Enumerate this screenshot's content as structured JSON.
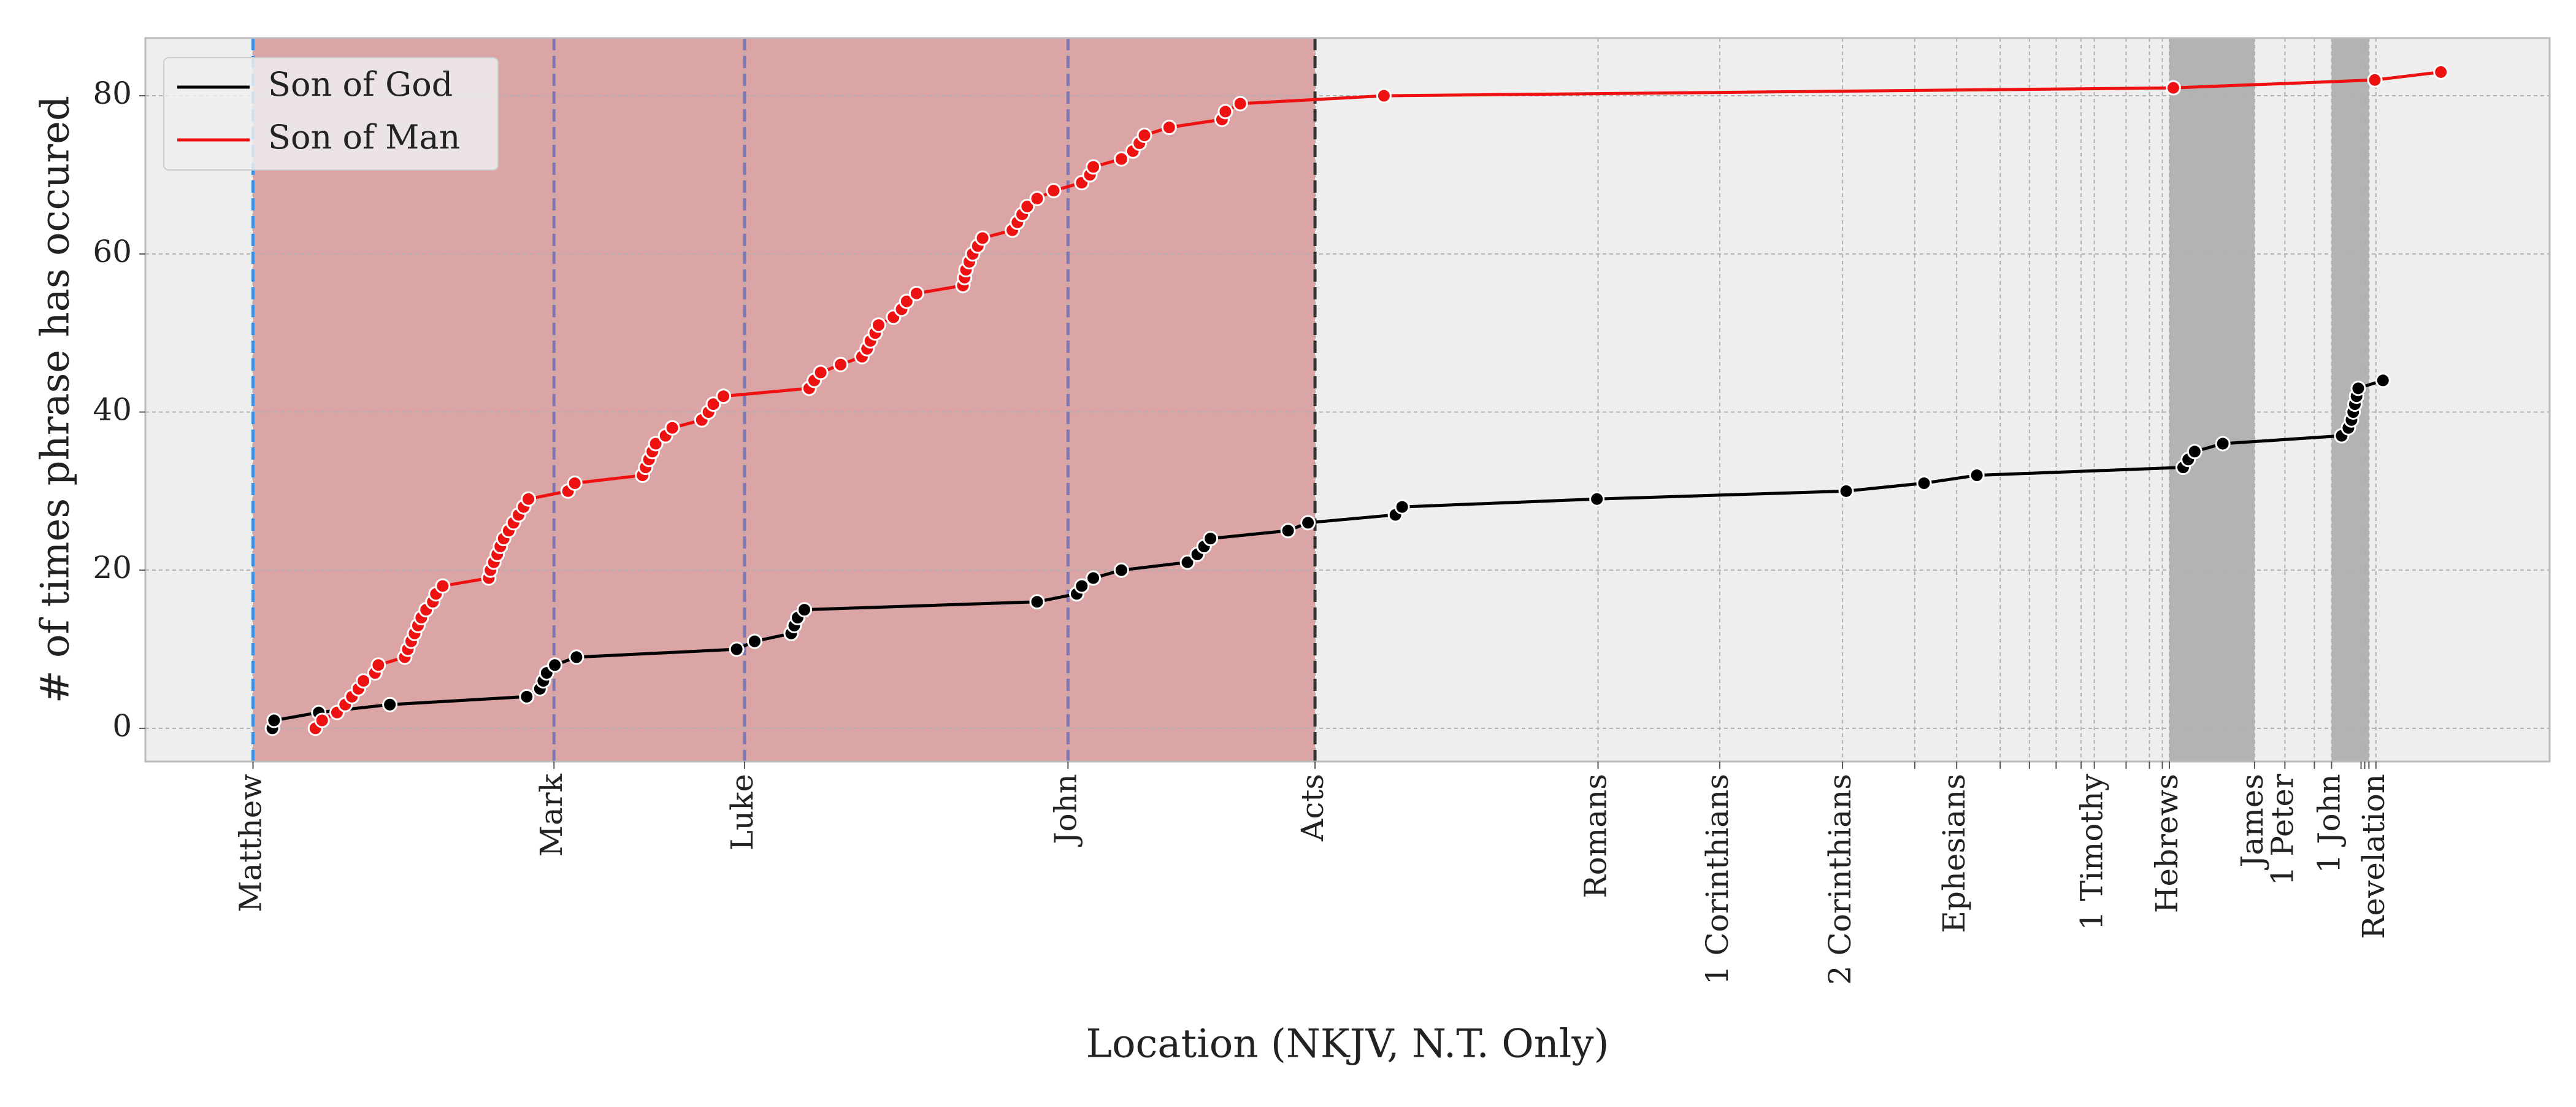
{
  "chart_data": {
    "type": "line",
    "xlabel": "Location (NKJV, N.T. Only)",
    "ylabel": "# of times phrase has occured",
    "xlim": [
      -382,
      8173
    ],
    "ylim": [
      -4.2,
      87.3
    ],
    "yticks": [
      0,
      20,
      40,
      60,
      80
    ],
    "xticks": [
      {
        "value": 1,
        "label": "Matthew"
      },
      {
        "value": 1072,
        "label": "Mark"
      },
      {
        "value": 1750,
        "label": "Luke"
      },
      {
        "value": 2901,
        "label": "John"
      },
      {
        "value": 3780,
        "label": "Acts"
      },
      {
        "value": 4787,
        "label": "Romans"
      },
      {
        "value": 5220,
        "label": "1 Corinthians"
      },
      {
        "value": 5657,
        "label": "2 Corinthians"
      },
      {
        "value": 5914,
        "label": null
      },
      {
        "value": 6063,
        "label": "Ephesians"
      },
      {
        "value": 6218,
        "label": null
      },
      {
        "value": 6322,
        "label": null
      },
      {
        "value": 6417,
        "label": null
      },
      {
        "value": 6506,
        "label": null
      },
      {
        "value": 6553,
        "label": "1 Timothy"
      },
      {
        "value": 6666,
        "label": null
      },
      {
        "value": 6749,
        "label": null
      },
      {
        "value": 6795,
        "label": null
      },
      {
        "value": 6820,
        "label": "Hebrews"
      },
      {
        "value": 7123,
        "label": "James"
      },
      {
        "value": 7231,
        "label": "1 Peter"
      },
      {
        "value": 7336,
        "label": null
      },
      {
        "value": 7397,
        "label": "1 John"
      },
      {
        "value": 7502,
        "label": null
      },
      {
        "value": 7515,
        "label": null
      },
      {
        "value": 7530,
        "label": null
      },
      {
        "value": 7555,
        "label": "Revelation"
      }
    ],
    "grid": true,
    "legend": "upper left",
    "spans": [
      {
        "x0": 1,
        "x1": 3780,
        "color": "#dba5a5"
      },
      {
        "x0": 6820,
        "x1": 7123,
        "color": "#b3b3b3"
      },
      {
        "x0": 7397,
        "x1": 7530,
        "color": "#b3b3b3"
      }
    ],
    "vlines": [
      {
        "x": 1,
        "color": "#3a8fe0"
      },
      {
        "x": 1072,
        "color": "#7f78b6"
      },
      {
        "x": 1750,
        "color": "#7f78b6"
      },
      {
        "x": 2901,
        "color": "#7f78b6"
      },
      {
        "x": 3780,
        "color": "#333333"
      }
    ],
    "series": [
      {
        "name": "Son of God",
        "color": "#000000",
        "x": [
          70,
          76,
          235,
          488,
          975,
          1022,
          1034,
          1046,
          1075,
          1152,
          1722,
          1786,
          1916,
          1927,
          1939,
          1963,
          2791,
          2932,
          2950,
          2991,
          3091,
          3326,
          3361,
          3385,
          3408,
          3684,
          3755,
          4066,
          4090,
          4783,
          5670,
          5947,
          6135,
          6869,
          6887,
          6910,
          7010,
          7433,
          7457,
          7468,
          7474,
          7480,
          7486,
          7492,
          7580
        ],
        "values": [
          0,
          1,
          2,
          3,
          4,
          5,
          6,
          7,
          8,
          9,
          10,
          11,
          12,
          13,
          14,
          15,
          16,
          17,
          18,
          19,
          20,
          21,
          22,
          23,
          24,
          25,
          26,
          27,
          28,
          29,
          30,
          31,
          32,
          33,
          34,
          35,
          36,
          37,
          38,
          39,
          40,
          41,
          42,
          43,
          44
        ]
      },
      {
        "name": "Son of Man",
        "color": "#ee1111",
        "x": [
          223,
          247,
          300,
          329,
          353,
          376,
          394,
          435,
          447,
          541,
          552,
          564,
          576,
          588,
          600,
          617,
          641,
          652,
          676,
          840,
          846,
          858,
          870,
          881,
          893,
          911,
          928,
          946,
          964,
          981,
          1122,
          1146,
          1387,
          1398,
          1410,
          1422,
          1434,
          1469,
          1493,
          1598,
          1622,
          1639,
          1675,
          1980,
          1998,
          2021,
          2092,
          2168,
          2186,
          2198,
          2215,
          2227,
          2280,
          2309,
          2327,
          2362,
          2527,
          2533,
          2538,
          2550,
          2562,
          2580,
          2597,
          2703,
          2721,
          2738,
          2756,
          2791,
          2850,
          2950,
          2979,
          2991,
          3091,
          3132,
          3155,
          3173,
          3261,
          3449,
          3461,
          3514,
          4025,
          6834,
          7551,
          7786
        ],
        "values": [
          0,
          1,
          2,
          3,
          4,
          5,
          6,
          7,
          8,
          9,
          10,
          11,
          12,
          13,
          14,
          15,
          16,
          17,
          18,
          19,
          20,
          21,
          22,
          23,
          24,
          25,
          26,
          27,
          28,
          29,
          30,
          31,
          32,
          33,
          34,
          35,
          36,
          37,
          38,
          39,
          40,
          41,
          42,
          43,
          44,
          45,
          46,
          47,
          48,
          49,
          50,
          51,
          52,
          53,
          54,
          55,
          56,
          57,
          58,
          59,
          60,
          61,
          62,
          63,
          64,
          65,
          66,
          67,
          68,
          69,
          70,
          71,
          72,
          73,
          74,
          75,
          76,
          77,
          78,
          79,
          80,
          81,
          82,
          83
        ]
      }
    ]
  }
}
